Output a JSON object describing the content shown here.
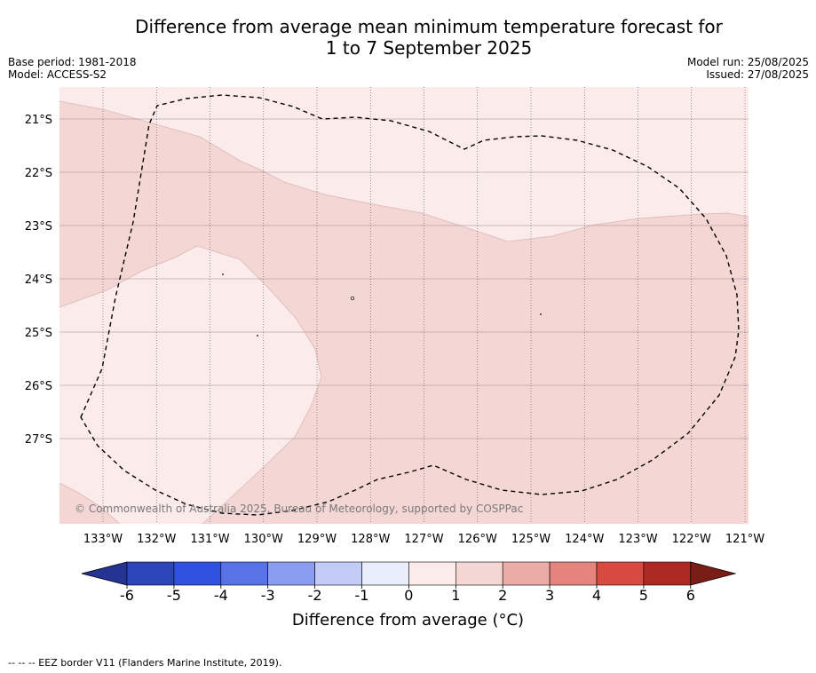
{
  "title": {
    "line1": "Difference from average mean minimum temperature forecast for",
    "line2": "1 to 7 September 2025"
  },
  "meta": {
    "base_period": "Base period: 1981-2018",
    "model": "Model: ACCESS-S2",
    "model_run": "Model run: 25/08/2025",
    "issued": "Issued: 27/08/2025"
  },
  "map": {
    "lat_labels": [
      "21°S",
      "22°S",
      "23°S",
      "24°S",
      "25°S",
      "26°S",
      "27°S"
    ],
    "lon_labels": [
      "133°W",
      "132°W",
      "131°W",
      "130°W",
      "129°W",
      "128°W",
      "127°W",
      "126°W",
      "125°W",
      "124°W",
      "123°W",
      "122°W",
      "121°W"
    ],
    "copyright": "© Commonwealth of Australia 2025, Bureau of Meteorology, supported by COSPPac",
    "colors": {
      "zone_0_1": "#fbebea",
      "zone_1_2": "#f4d6d5",
      "border": "#000000"
    }
  },
  "colorbar": {
    "ticks": [
      "-6",
      "-5",
      "-4",
      "-3",
      "-2",
      "-1",
      "0",
      "1",
      "2",
      "3",
      "4",
      "5",
      "6"
    ],
    "colors": [
      "#253494",
      "#2c46b8",
      "#3050e0",
      "#5873e6",
      "#8a9df0",
      "#c3cbf7",
      "#eaedfc",
      "#fbebea",
      "#f4d6d5",
      "#ebaba7",
      "#e5847d",
      "#d84a40",
      "#ac2a22",
      "#7a1d16"
    ],
    "label": "Difference from average (°C)"
  },
  "footnote": "-- -- -- EEZ border V11 (Flanders Marine Institute, 2019)."
}
